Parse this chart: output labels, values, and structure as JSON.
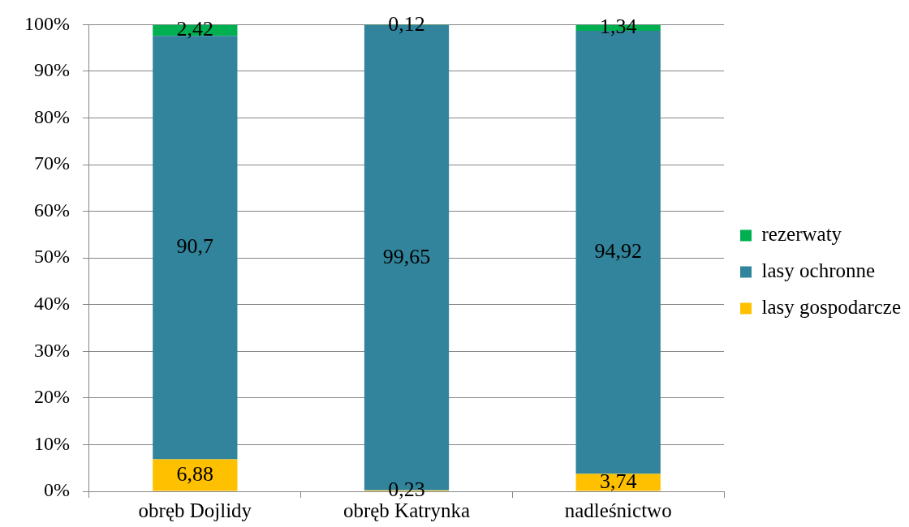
{
  "chart_data": {
    "type": "bar",
    "stacked": true,
    "categories": [
      "obręb Dojlidy",
      "obręb Katrynka",
      "nadleśnictwo"
    ],
    "series": [
      {
        "name": "lasy gospodarcze",
        "color": "#ffc000",
        "values": [
          6.88,
          0.23,
          3.74
        ],
        "value_labels": [
          "6,88",
          "0,23",
          "3,74"
        ]
      },
      {
        "name": "lasy ochronne",
        "color": "#31849b",
        "values": [
          90.7,
          99.65,
          94.92
        ],
        "value_labels": [
          "90,7",
          "99,65",
          "94,92"
        ]
      },
      {
        "name": "rezerwaty",
        "color": "#00b050",
        "values": [
          2.42,
          0.12,
          1.34
        ],
        "value_labels": [
          "2,42",
          "0,12",
          "1,34"
        ]
      }
    ],
    "ylim": [
      0,
      100
    ],
    "yticks": [
      {
        "value": 0,
        "label": "0%"
      },
      {
        "value": 10,
        "label": "10%"
      },
      {
        "value": 20,
        "label": "20%"
      },
      {
        "value": 30,
        "label": "30%"
      },
      {
        "value": 40,
        "label": "40%"
      },
      {
        "value": 50,
        "label": "50%"
      },
      {
        "value": 60,
        "label": "60%"
      },
      {
        "value": 70,
        "label": "70%"
      },
      {
        "value": 80,
        "label": "80%"
      },
      {
        "value": 90,
        "label": "90%"
      },
      {
        "value": 100,
        "label": "100%"
      }
    ],
    "grid": "y",
    "legend": "right"
  }
}
